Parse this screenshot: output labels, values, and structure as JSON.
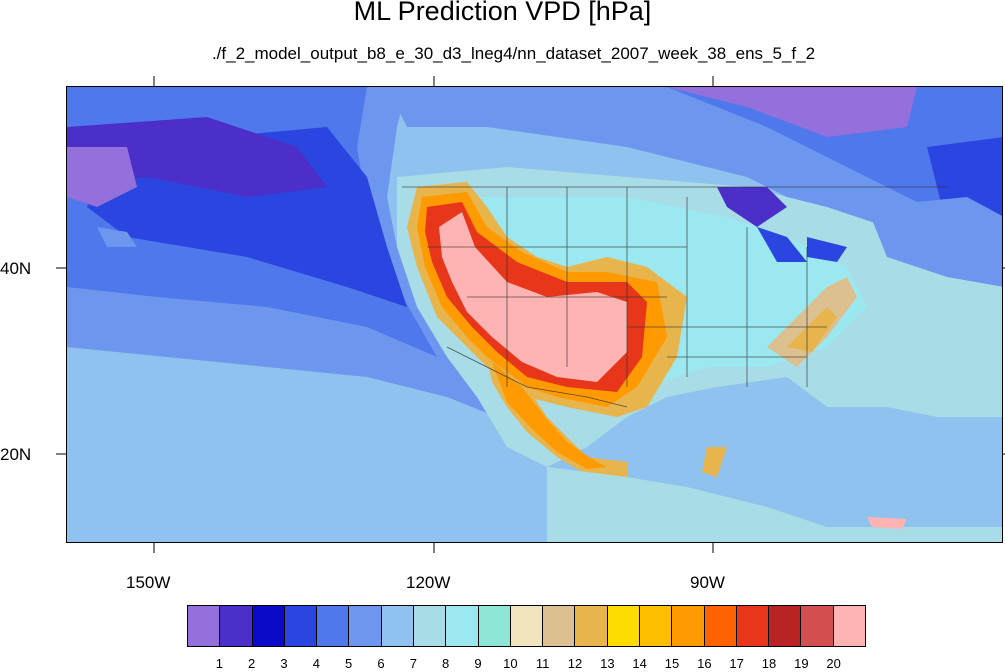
{
  "title": "ML Prediction VPD [hPa]",
  "subtitle": "./f_2_model_output_b8_e_30_d3_lneg4/nn_dataset_2007_week_38_ens_5_f_2",
  "map": {
    "x_ticks": [
      {
        "label": "150W",
        "lon": -150
      },
      {
        "label": "120W",
        "lon": -120
      },
      {
        "label": "90W",
        "lon": -90
      }
    ],
    "y_ticks": [
      {
        "label": "40N",
        "lat": 40
      },
      {
        "label": "20N",
        "lat": 20
      }
    ],
    "lon_range": [
      -160,
      -60
    ],
    "lat_range": [
      10,
      60
    ]
  },
  "colorbar": {
    "colors": [
      "#9370db",
      "#4b2fc8",
      "#0a0ac8",
      "#2b45e0",
      "#4f78ec",
      "#6d96ee",
      "#8fc2ee",
      "#a8dce6",
      "#9be8f0",
      "#8ee6d6",
      "#f2e4bc",
      "#dcc08f",
      "#e8b44c",
      "#ffdc00",
      "#ffbf00",
      "#ff9a00",
      "#ff6200",
      "#e8361a",
      "#b82424",
      "#d45050",
      "#ffb4b4"
    ],
    "labels": [
      "1",
      "2",
      "3",
      "4",
      "5",
      "6",
      "7",
      "8",
      "9",
      "10",
      "11",
      "12",
      "13",
      "14",
      "15",
      "16",
      "17",
      "18",
      "19",
      "20"
    ]
  }
}
